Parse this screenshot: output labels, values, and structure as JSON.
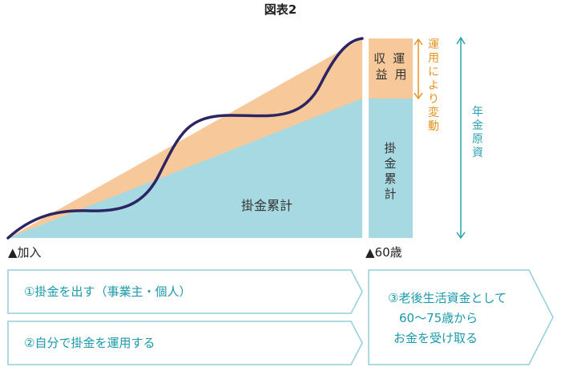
{
  "figure": {
    "title": "図表2",
    "area_label": "掛金累計",
    "bar_top_label": [
      "運用",
      "収益"
    ],
    "bar_bottom_label": "掛金累計",
    "bracket_variable": "運用により変動",
    "bracket_total": "年金原資",
    "start_marker": "▲加入",
    "end_marker": "▲60歳"
  },
  "steps": {
    "step1": "①掛金を出す（事業主・個人）",
    "step2": "②自分で掛金を運用する",
    "step3": [
      "③老後生活資金として",
      "60〜75歳から",
      "お金を受け取る"
    ]
  },
  "colors": {
    "contribution": "#a7d9e3",
    "returns": "#f7c99a",
    "curve": "#2c2463",
    "orange_accent": "#e8921e",
    "teal_accent": "#2aa1b2",
    "step_text": "#1a9aab",
    "step_border": "#8fd0da"
  }
}
